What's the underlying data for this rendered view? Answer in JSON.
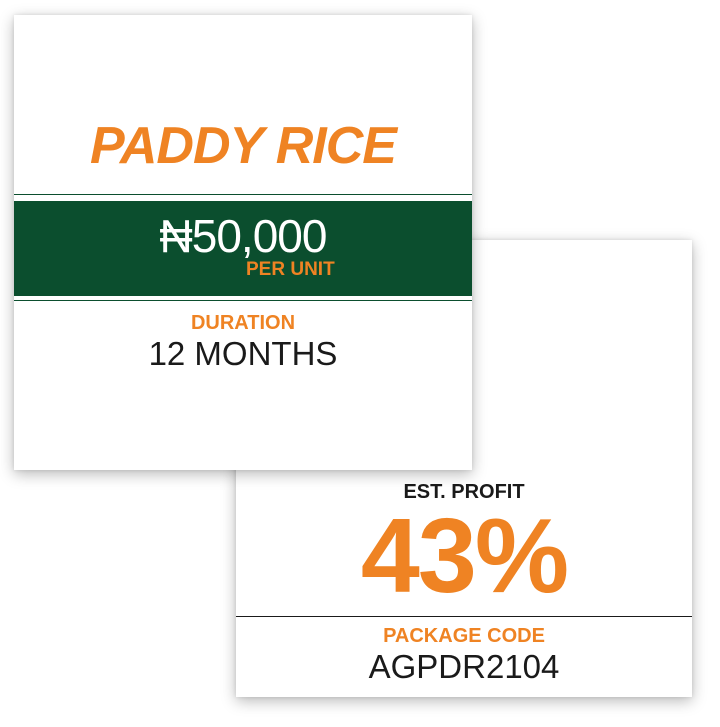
{
  "colors": {
    "accent_orange": "#ef8323",
    "band_green": "#0b4e2e",
    "rule_green": "#0b4e2e",
    "text_dark": "#1a1a1a",
    "text_white": "#ffffff"
  },
  "front_card": {
    "title": "PADDY RICE",
    "price": "₦50,000",
    "price_unit": "PER UNIT",
    "duration_label": "DURATION",
    "duration_value": "12 MONTHS"
  },
  "back_card": {
    "profit_label": "EST. PROFIT",
    "profit_value": "43%",
    "code_label": "PACKAGE CODE",
    "code_value": "AGPDR2104"
  }
}
